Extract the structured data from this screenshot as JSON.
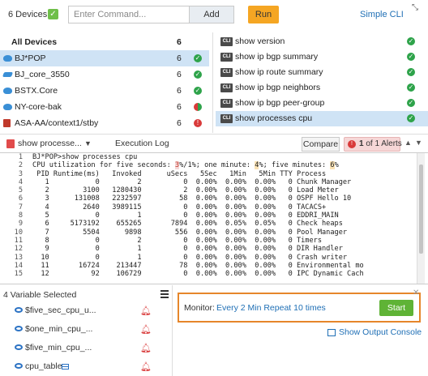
{
  "topbar": {
    "device_count": "6 Devices",
    "command_placeholder": "Enter Command...",
    "add_label": "Add",
    "run_label": "Run",
    "simple_cli": "Simple CLI"
  },
  "devices": {
    "header": {
      "name": "All Devices",
      "count": "6"
    },
    "items": [
      {
        "name": "BJ*POP",
        "count": "6",
        "status": "ok",
        "icon": "router-icon",
        "selected": true
      },
      {
        "name": "BJ_core_3550",
        "count": "6",
        "status": "ok",
        "icon": "switch-icon"
      },
      {
        "name": "BSTX.Core",
        "count": "6",
        "status": "ok",
        "icon": "router-icon"
      },
      {
        "name": "NY-core-bak",
        "count": "6",
        "status": "mixed",
        "icon": "router-icon"
      },
      {
        "name": "ASA-AA/context1/stby",
        "count": "6",
        "status": "error",
        "icon": "firewall-icon"
      }
    ]
  },
  "commands": [
    {
      "label": "show version",
      "status": "ok"
    },
    {
      "label": "show ip bgp summary",
      "status": "ok"
    },
    {
      "label": "show ip route summary",
      "status": "ok"
    },
    {
      "label": "show ip bgp neighbors",
      "status": "ok"
    },
    {
      "label": "show ip bgp peer-group",
      "status": "ok"
    },
    {
      "label": "show processes cpu",
      "status": "ok",
      "selected": true
    }
  ],
  "output_header": {
    "selected_command": "show processe...",
    "execution_log": "Execution Log",
    "compare": "Compare",
    "alert_current": "1",
    "alert_text": " of 1 Alerts"
  },
  "terminal": {
    "lines": [
      {
        "n": "1",
        "pre": "BJ*POP>show processes cpu"
      },
      {
        "n": "2",
        "pre": "CPU utilization for five seconds: ",
        "h1": "3",
        "mid1": "%/1%; one minute: ",
        "h2": "4",
        "mid2": "%; five minutes: ",
        "h3": "6",
        "post": "%"
      },
      {
        "n": "3",
        "pre": " PID Runtime(ms)   Invoked      uSecs   5Sec   1Min   5Min TTY Process"
      },
      {
        "n": "4",
        "pre": "   1           0         2          0  0.00%  0.00%  0.00%   0 Chunk Manager"
      },
      {
        "n": "5",
        "pre": "   2        3100   1280430          2  0.00%  0.00%  0.00%   0 Load Meter"
      },
      {
        "n": "6",
        "pre": "   3      131008   2232597         58  0.00%  0.00%  0.00%   0 OSPF Hello 10"
      },
      {
        "n": "7",
        "pre": "   4        2640   3989115          0  0.00%  0.00%  0.00%   0 TACACS+"
      },
      {
        "n": "8",
        "pre": "   5           0         1          0  0.00%  0.00%  0.00%   0 EDDRI_MAIN"
      },
      {
        "n": "9",
        "pre": "   6     5173192    655265       7894  0.00%  0.05%  0.05%   0 Check heaps"
      },
      {
        "n": "10",
        "pre": "   7        5504      9898        556  0.00%  0.00%  0.00%   0 Pool Manager"
      },
      {
        "n": "11",
        "pre": "   8           0         2          0  0.00%  0.00%  0.00%   0 Timers"
      },
      {
        "n": "12",
        "pre": "   9           0         1          0  0.00%  0.00%  0.00%   0 DIR Handler"
      },
      {
        "n": "13",
        "pre": "  10           0         1          0  0.00%  0.00%  0.00%   0 Crash writer"
      },
      {
        "n": "14",
        "pre": "  11       16724    213447         78  0.00%  0.00%  0.00%   0 Environmental mo"
      },
      {
        "n": "15",
        "pre": "  12          92    106729          0  0.00%  0.00%  0.00%   0 IPC Dynamic Cach"
      }
    ]
  },
  "variables": {
    "title": "4 Variable Selected",
    "items": [
      {
        "name": "$five_sec_cpu_u...",
        "icon": "eye-icon",
        "alert": true
      },
      {
        "name": "$one_min_cpu_...",
        "icon": "eye-icon",
        "alert": true
      },
      {
        "name": "$five_min_cpu_...",
        "icon": "eye-icon",
        "alert": true
      },
      {
        "name": "cpu_table",
        "icon": "eye-icon",
        "alert": true,
        "table": true
      }
    ]
  },
  "monitor": {
    "label": "Monitor:",
    "value": "Every 2 Min Repeat 10 times",
    "start": "Start",
    "show_output": "Show Output Console"
  },
  "colors": {
    "accent_blue": "#1f6fb5",
    "run_orange": "#f5a623",
    "start_green": "#5fb336",
    "ok_green": "#2ea34a",
    "error_red": "#d93a3a",
    "monitor_border": "#e6862a",
    "selection": "#cfe3f5"
  }
}
